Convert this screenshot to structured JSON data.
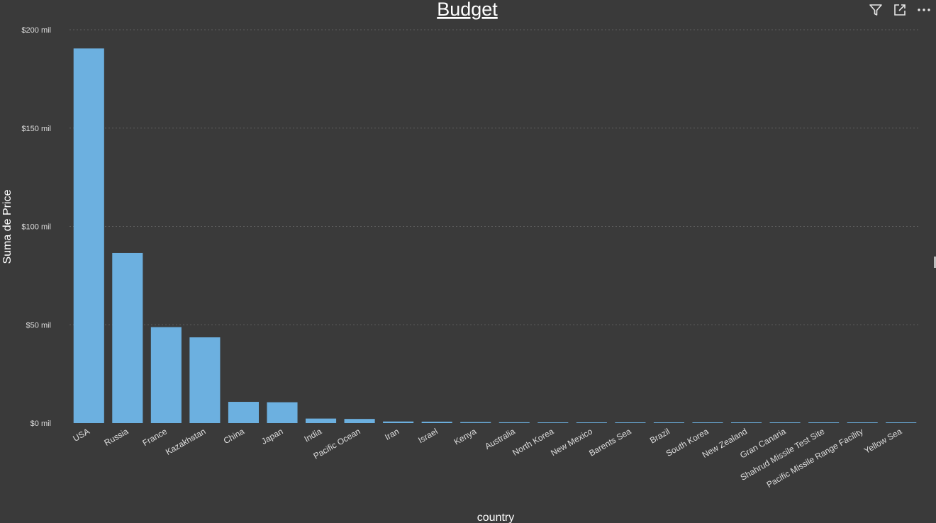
{
  "header": {
    "filter_icon": "filter-icon",
    "focus_icon": "focus-mode-icon",
    "more_icon": "more-options-icon"
  },
  "colors": {
    "background": "#3a3a3a",
    "bar": "#6cb0e0",
    "text": "#ffffff",
    "tick_text": "#dddddd",
    "grid": "#5e5e5e"
  },
  "chart_data": {
    "type": "bar",
    "title": "Budget",
    "xlabel": "country",
    "ylabel": "Suma de Price",
    "ylim": [
      0,
      200
    ],
    "yticks": [
      {
        "value": 0,
        "label": "$0 mil"
      },
      {
        "value": 50,
        "label": "$50 mil"
      },
      {
        "value": 100,
        "label": "$100 mil"
      },
      {
        "value": 150,
        "label": "$150 mil"
      },
      {
        "value": 200,
        "label": "$200 mil"
      }
    ],
    "grid": true,
    "categories": [
      "USA",
      "Russia",
      "France",
      "Kazakhstan",
      "China",
      "Japan",
      "India",
      "Pacific Ocean",
      "Iran",
      "Israel",
      "Kenya",
      "Australia",
      "North Korea",
      "New Mexico",
      "Barents Sea",
      "Brazil",
      "South Korea",
      "New Zealand",
      "Gran Canaria",
      "Shahrud Missile Test Site",
      "Pacific Missile Range Facility",
      "Yellow Sea"
    ],
    "values": [
      190.5,
      86.5,
      48.8,
      43.6,
      10.8,
      10.6,
      2.3,
      2.1,
      0.8,
      0.7,
      0.5,
      0.4,
      0.3,
      0.3,
      0.3,
      0.3,
      0.3,
      0.3,
      0.3,
      0.3,
      0.3,
      0.3
    ]
  }
}
